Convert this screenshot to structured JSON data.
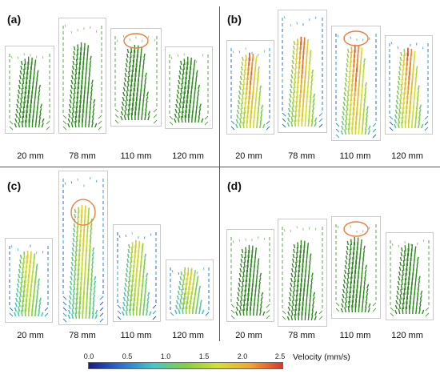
{
  "quadrants": [
    {
      "label": "(a)",
      "columns": [
        "20 mm",
        "78 mm",
        "110 mm",
        "120 mm"
      ],
      "max_level": 0.46,
      "outer_level": 0.55,
      "circle_on": 2
    },
    {
      "label": "(b)",
      "columns": [
        "20 mm",
        "78 mm",
        "110 mm",
        "120 mm"
      ],
      "max_level": 1.0,
      "outer_level": 0.12,
      "circle_on": 2
    },
    {
      "label": "(c)",
      "columns": [
        "20 mm",
        "78 mm",
        "110 mm",
        "120 mm"
      ],
      "max_level": 0.78,
      "outer_level": 0.12,
      "circle_on": 1
    },
    {
      "label": "(d)",
      "columns": [
        "20 mm",
        "78 mm",
        "110 mm",
        "120 mm"
      ],
      "max_level": 0.46,
      "outer_level": 0.55,
      "circle_on": 2
    }
  ],
  "colorbar": {
    "title": "Velocity (mm/s)",
    "ticks": [
      "0.0",
      "0.5",
      "1.0",
      "1.5",
      "2.0",
      "2.5"
    ],
    "colors": [
      "#1a1a8c",
      "#2a6fd6",
      "#3fc9c9",
      "#7fd13b",
      "#d6e02a",
      "#f4a52a",
      "#e0352a"
    ]
  },
  "highlight_color": "#ef7d3c"
}
